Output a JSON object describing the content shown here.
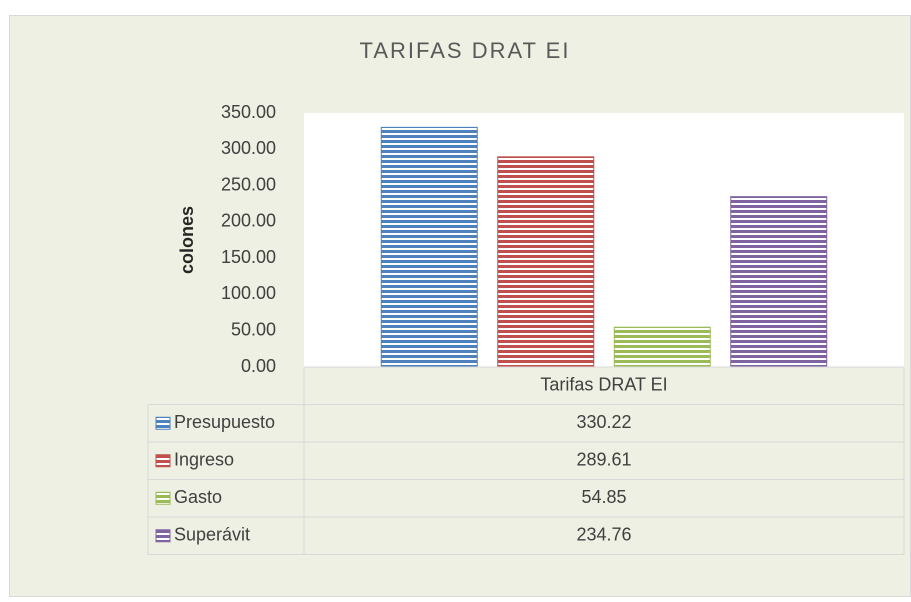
{
  "chart_data": {
    "type": "bar",
    "title": "TARIFAS DRAT EI",
    "y_label": "colones",
    "categories": [
      "Tarifas DRAT EI"
    ],
    "series": [
      {
        "name": "Presupuesto",
        "color": "#4f81bd",
        "values": [
          330.22
        ]
      },
      {
        "name": "Ingreso",
        "color": "#c0504d",
        "values": [
          289.61
        ]
      },
      {
        "name": "Gasto",
        "color": "#9bbb59",
        "values": [
          54.85
        ]
      },
      {
        "name": "Superávit",
        "color": "#8064a2",
        "values": [
          234.76
        ]
      }
    ],
    "ylim": [
      0,
      350
    ],
    "yticks": [
      {
        "value": 0,
        "label": "0.00"
      },
      {
        "value": 50,
        "label": "50.00"
      },
      {
        "value": 100,
        "label": "100.00"
      },
      {
        "value": 150,
        "label": "150.00"
      },
      {
        "value": 200,
        "label": "200.00"
      },
      {
        "value": 250,
        "label": "250.00"
      },
      {
        "value": 300,
        "label": "300.00"
      },
      {
        "value": 350,
        "label": "350.00"
      }
    ],
    "pattern": "horizontal-stripes",
    "data_table": true
  }
}
